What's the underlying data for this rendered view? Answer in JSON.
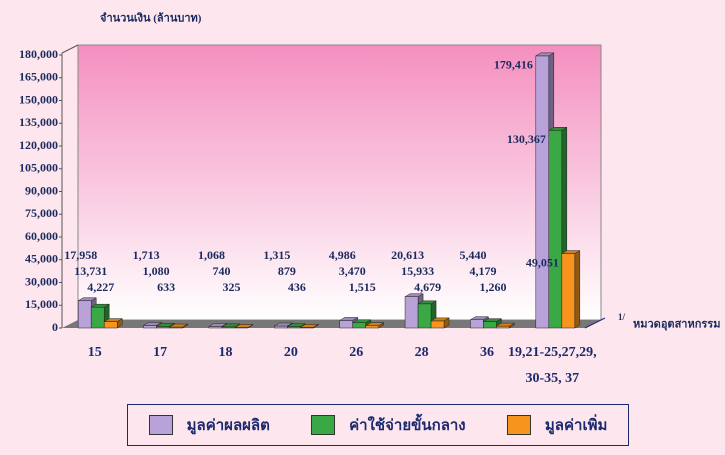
{
  "chart_data": {
    "type": "bar3d",
    "y_label": "จำนวนเงิน (ล้านบาท)",
    "x_label": "หมวดอุตสาหกรรม",
    "x_note": "1/",
    "categories": [
      "15",
      "17",
      "18",
      "20",
      "26",
      "28",
      "36",
      "19,21-25,27,29,\n30-35, 37"
    ],
    "ylim": [
      0,
      180000
    ],
    "yticks": [
      0,
      {
        "value": 15000,
        "label": "15,000"
      },
      {
        "value": 30000,
        "label": "30,000"
      },
      {
        "value": 45000,
        "label": "45,000"
      },
      {
        "value": 60000,
        "label": "60,000"
      },
      {
        "value": 75000,
        "label": "75,000"
      },
      {
        "value": 90000,
        "label": "90,000"
      },
      {
        "value": 105000,
        "label": "105,000"
      },
      {
        "value": 120000,
        "label": "120,000"
      },
      {
        "value": 135000,
        "label": "135,000"
      },
      {
        "value": 150000,
        "label": "150,000"
      },
      {
        "value": 165000,
        "label": "165,000"
      },
      {
        "value": 180000,
        "label": "180,000"
      }
    ],
    "series": [
      {
        "name": "มูลค่าผลผลิต",
        "color": "#b9a2da",
        "values": [
          17958,
          1713,
          1068,
          1315,
          4986,
          20613,
          5440,
          179416
        ],
        "value_labels": [
          "17,958",
          "1,713",
          "1,068",
          "1,315",
          "4,986",
          "20,613",
          "5,440",
          "179,416"
        ]
      },
      {
        "name": "ค่าใช้จ่ายขั้นกลาง",
        "color": "#3aa845",
        "values": [
          13731,
          1080,
          740,
          879,
          3470,
          15933,
          4179,
          130367
        ],
        "value_labels": [
          "13,731",
          "1,080",
          "740",
          "879",
          "3,470",
          "15,933",
          "4,179",
          "130,367"
        ]
      },
      {
        "name": "มูลค่าเพิ่ม",
        "color": "#f7941d",
        "values": [
          4227,
          633,
          325,
          436,
          1515,
          4679,
          1260,
          49051
        ],
        "value_labels": [
          "4,227",
          "633",
          "325",
          "436",
          "1,515",
          "4,679",
          "1,260",
          "49,051"
        ]
      }
    ]
  }
}
